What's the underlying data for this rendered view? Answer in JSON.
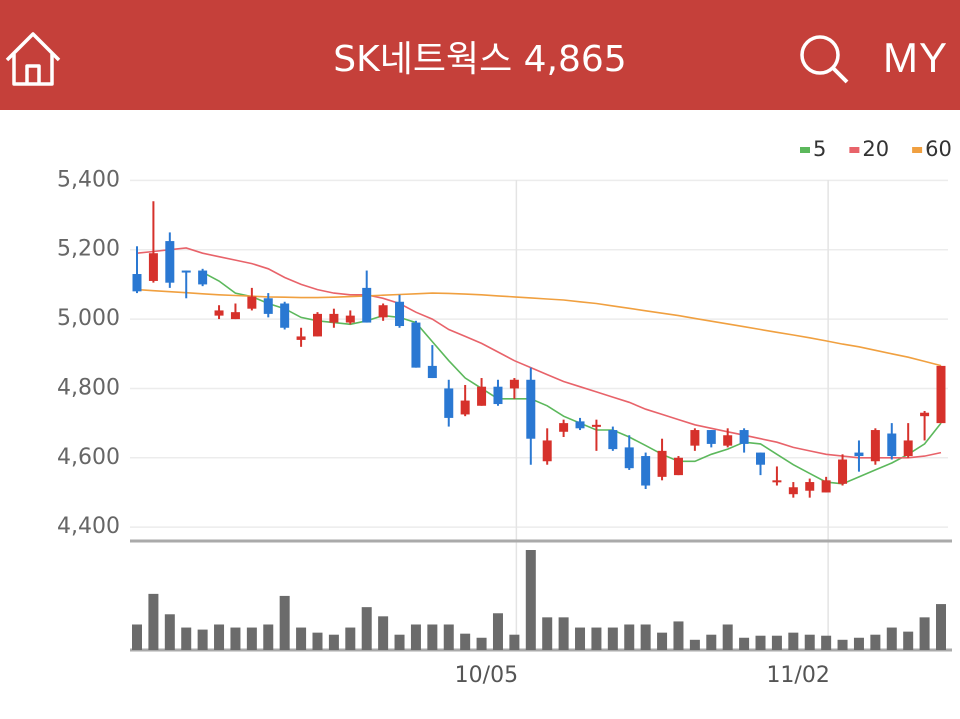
{
  "header": {
    "title": "SK네트웍스 4,865",
    "my": "MY"
  },
  "chart_data": {
    "type": "candlestick",
    "categories": [
      null,
      null,
      null,
      null,
      null,
      null,
      null,
      null,
      null,
      null,
      null,
      null,
      null,
      null,
      null,
      null,
      null,
      null,
      null,
      null,
      null,
      null,
      null,
      "10/05",
      null,
      null,
      null,
      null,
      null,
      null,
      null,
      null,
      null,
      null,
      null,
      null,
      null,
      null,
      null,
      null,
      null,
      null,
      "11/02",
      null,
      null,
      null,
      null,
      null,
      null,
      null
    ],
    "open": [
      5130,
      5110,
      5225,
      5140,
      5140,
      5010,
      5000,
      5030,
      5060,
      5045,
      4940,
      4950,
      4990,
      4990,
      5090,
      5005,
      5050,
      4990,
      4865,
      4800,
      4725,
      4750,
      4805,
      4800,
      4825,
      4590,
      4675,
      4705,
      4690,
      4680,
      4630,
      4605,
      4545,
      4550,
      4635,
      4680,
      4635,
      4680,
      4615,
      4530,
      4495,
      4505,
      4500,
      4525,
      4615,
      4590,
      4670,
      4605,
      4720,
      4700
    ],
    "high": [
      5210,
      5340,
      5250,
      5140,
      5145,
      5040,
      5045,
      5090,
      5075,
      5050,
      4975,
      5020,
      5030,
      5025,
      5140,
      5045,
      5070,
      4995,
      4925,
      4825,
      4810,
      4830,
      4825,
      4830,
      4860,
      4685,
      4710,
      4715,
      4710,
      4690,
      4665,
      4615,
      4655,
      4605,
      4685,
      4680,
      4685,
      4685,
      4615,
      4575,
      4530,
      4540,
      4545,
      4610,
      4650,
      4685,
      4700,
      4700,
      4735,
      4865
    ],
    "low": [
      5075,
      5105,
      5090,
      5060,
      5095,
      5000,
      5000,
      5025,
      5005,
      4970,
      4920,
      4950,
      4975,
      4985,
      4990,
      4995,
      4975,
      4860,
      4830,
      4690,
      4720,
      4750,
      4750,
      4770,
      4580,
      4580,
      4660,
      4680,
      4620,
      4620,
      4565,
      4510,
      4535,
      4550,
      4620,
      4630,
      4630,
      4615,
      4550,
      4520,
      4485,
      4485,
      4500,
      4520,
      4560,
      4580,
      4595,
      4600,
      4650,
      4700
    ],
    "close": [
      5080,
      5190,
      5105,
      5135,
      5100,
      5025,
      5020,
      5065,
      5015,
      4975,
      4950,
      5015,
      5015,
      5010,
      4990,
      5040,
      4980,
      4860,
      4830,
      4715,
      4765,
      4805,
      4755,
      4825,
      4655,
      4650,
      4700,
      4685,
      4695,
      4625,
      4570,
      4520,
      4620,
      4600,
      4680,
      4640,
      4665,
      4640,
      4580,
      4535,
      4515,
      4530,
      4535,
      4595,
      4605,
      4680,
      4605,
      4650,
      4730,
      4865
    ],
    "volume": [
      25,
      55,
      35,
      22,
      20,
      25,
      22,
      22,
      25,
      53,
      22,
      17,
      15,
      22,
      42,
      33,
      15,
      25,
      25,
      25,
      16,
      12,
      36,
      15,
      98,
      32,
      32,
      22,
      22,
      22,
      25,
      25,
      17,
      28,
      10,
      15,
      25,
      12,
      14,
      14,
      17,
      15,
      14,
      10,
      12,
      15,
      22,
      18,
      32,
      45
    ],
    "series": [
      {
        "name": "5",
        "color": "#5cb85c",
        "values": [
          null,
          null,
          null,
          null,
          5135,
          5110,
          5075,
          5065,
          5045,
          5030,
          5005,
          4995,
          4990,
          4985,
          4995,
          5010,
          5005,
          4990,
          4935,
          4880,
          4830,
          4800,
          4770,
          4770,
          4770,
          4750,
          4720,
          4700,
          4680,
          4680,
          4660,
          4635,
          4610,
          4590,
          4590,
          4610,
          4625,
          4645,
          4640,
          4610,
          4580,
          4555,
          4530,
          4525,
          4545,
          4565,
          4585,
          4610,
          4640,
          4700
        ]
      },
      {
        "name": "20",
        "color": "#e8636a",
        "values": [
          5190,
          5195,
          5200,
          5205,
          5190,
          5180,
          5170,
          5160,
          5145,
          5120,
          5100,
          5085,
          5075,
          5070,
          5070,
          5060,
          5045,
          5020,
          5000,
          4970,
          4950,
          4930,
          4905,
          4880,
          4860,
          4840,
          4820,
          4805,
          4790,
          4775,
          4760,
          4740,
          4725,
          4710,
          4695,
          4685,
          4675,
          4665,
          4655,
          4645,
          4630,
          4620,
          4610,
          4605,
          4600,
          4600,
          4600,
          4600,
          4605,
          4615
        ]
      },
      {
        "name": "60",
        "color": "#f0a040",
        "values": [
          5085,
          5082,
          5079,
          5076,
          5073,
          5070,
          5068,
          5066,
          5064,
          5063,
          5062,
          5062,
          5063,
          5065,
          5067,
          5069,
          5071,
          5073,
          5075,
          5074,
          5072,
          5070,
          5067,
          5064,
          5061,
          5058,
          5055,
          5050,
          5045,
          5038,
          5031,
          5024,
          5017,
          5010,
          5002,
          4994,
          4986,
          4978,
          4970,
          4962,
          4954,
          4946,
          4937,
          4928,
          4920,
          4910,
          4900,
          4890,
          4878,
          4866
        ]
      }
    ],
    "up_color": "#d6312b",
    "down_color": "#2a78d2",
    "volume_color": "#6b6b6b",
    "ylim": [
      4360,
      5430
    ],
    "yticks": [
      {
        "value": 4400,
        "label": "4,400"
      },
      {
        "value": 4600,
        "label": "4,600"
      },
      {
        "value": 4800,
        "label": "4,800"
      },
      {
        "value": 5000,
        "label": "5,000"
      },
      {
        "value": 5200,
        "label": "5,200"
      },
      {
        "value": 5400,
        "label": "5,400"
      }
    ],
    "grid": true
  }
}
